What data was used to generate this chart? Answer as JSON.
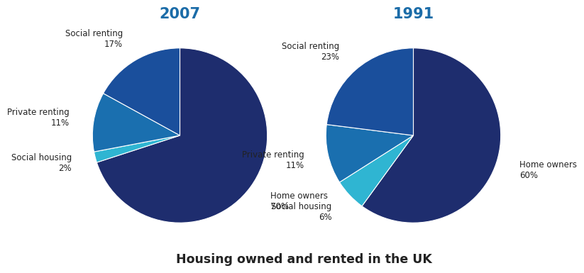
{
  "title_2007": "2007",
  "title_1991": "1991",
  "main_title": "Housing owned and rented in the UK",
  "title_color": "#1b6ca8",
  "main_title_color": "#222222",
  "chart1": {
    "order": [
      "Home owners",
      "Social housing",
      "Private renting",
      "Social renting"
    ],
    "values": [
      70,
      2,
      11,
      17
    ],
    "colors": [
      "#1e2d6e",
      "#2fb5d2",
      "#1a6faf",
      "#1a4f9c"
    ],
    "startangle": 90,
    "counterclock": false
  },
  "chart2": {
    "order": [
      "Home owners",
      "Social housing",
      "Private renting",
      "Social renting"
    ],
    "values": [
      60,
      6,
      11,
      23
    ],
    "colors": [
      "#1e2d6e",
      "#2fb5d2",
      "#1a6faf",
      "#1a4f9c"
    ],
    "startangle": 90,
    "counterclock": false
  },
  "background_color": "#ffffff",
  "label_fontsize": 8.5,
  "title_fontsize": 15
}
